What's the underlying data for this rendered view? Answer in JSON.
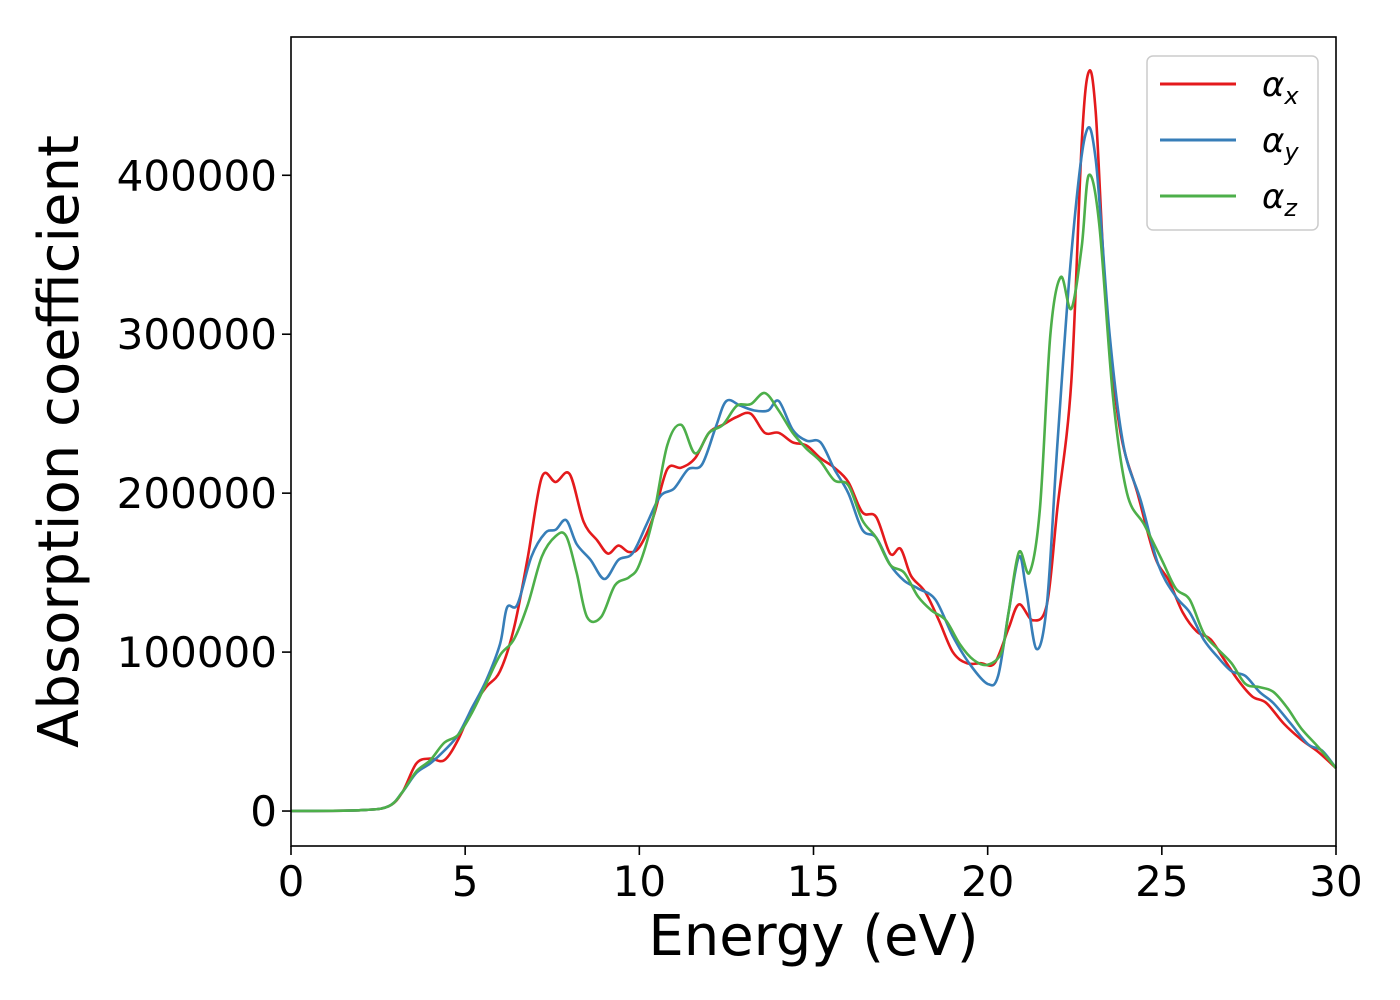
{
  "chart_data": {
    "type": "line",
    "title": "",
    "xlabel": "Energy (eV)",
    "ylabel": "Absorption coefficient",
    "xlim": [
      0,
      30
    ],
    "ylim": [
      -22000,
      487000
    ],
    "xticks": [
      0,
      5,
      10,
      15,
      20,
      25,
      30
    ],
    "xtick_labels": [
      "0",
      "5",
      "10",
      "15",
      "20",
      "25",
      "30"
    ],
    "yticks": [
      0,
      100000,
      200000,
      300000,
      400000
    ],
    "ytick_labels": [
      "0",
      "100000",
      "200000",
      "300000",
      "400000"
    ],
    "grid": false,
    "legend_position": "top-right",
    "series": [
      {
        "name": "α_x",
        "legend_base": "α",
        "legend_sub": "x",
        "color": "#e41a1c",
        "points": [
          [
            0,
            0
          ],
          [
            2,
            500
          ],
          [
            2.8,
            3000
          ],
          [
            3.2,
            12000
          ],
          [
            3.6,
            30000
          ],
          [
            4.0,
            33000
          ],
          [
            4.4,
            32000
          ],
          [
            4.8,
            45000
          ],
          [
            5.2,
            65000
          ],
          [
            5.6,
            78000
          ],
          [
            6.0,
            88000
          ],
          [
            6.4,
            115000
          ],
          [
            6.8,
            160000
          ],
          [
            7.2,
            210000
          ],
          [
            7.6,
            207000
          ],
          [
            8.0,
            212000
          ],
          [
            8.4,
            182000
          ],
          [
            8.8,
            170000
          ],
          [
            9.1,
            162000
          ],
          [
            9.4,
            167000
          ],
          [
            9.7,
            163000
          ],
          [
            10.0,
            166000
          ],
          [
            10.4,
            185000
          ],
          [
            10.8,
            215000
          ],
          [
            11.2,
            216000
          ],
          [
            11.6,
            222000
          ],
          [
            12.0,
            238000
          ],
          [
            12.4,
            243000
          ],
          [
            12.8,
            248000
          ],
          [
            13.2,
            250000
          ],
          [
            13.6,
            238000
          ],
          [
            14.0,
            238000
          ],
          [
            14.4,
            232000
          ],
          [
            14.8,
            230000
          ],
          [
            15.2,
            222000
          ],
          [
            15.6,
            216000
          ],
          [
            16.0,
            207000
          ],
          [
            16.4,
            188000
          ],
          [
            16.8,
            185000
          ],
          [
            17.2,
            162000
          ],
          [
            17.5,
            165000
          ],
          [
            17.8,
            148000
          ],
          [
            18.2,
            138000
          ],
          [
            18.6,
            120000
          ],
          [
            19.0,
            100000
          ],
          [
            19.4,
            93000
          ],
          [
            19.8,
            93000
          ],
          [
            20.2,
            93000
          ],
          [
            20.6,
            115000
          ],
          [
            20.9,
            130000
          ],
          [
            21.3,
            120000
          ],
          [
            21.7,
            130000
          ],
          [
            22.0,
            190000
          ],
          [
            22.4,
            270000
          ],
          [
            22.7,
            420000
          ],
          [
            22.9,
            465000
          ],
          [
            23.1,
            440000
          ],
          [
            23.4,
            320000
          ],
          [
            23.8,
            240000
          ],
          [
            24.3,
            200000
          ],
          [
            24.8,
            160000
          ],
          [
            25.2,
            145000
          ],
          [
            25.6,
            125000
          ],
          [
            26.0,
            113000
          ],
          [
            26.4,
            108000
          ],
          [
            26.8,
            95000
          ],
          [
            27.2,
            82000
          ],
          [
            27.6,
            72000
          ],
          [
            28.0,
            68000
          ],
          [
            28.5,
            55000
          ],
          [
            29.0,
            45000
          ],
          [
            29.5,
            37000
          ],
          [
            30.0,
            27000
          ]
        ]
      },
      {
        "name": "α_y",
        "legend_base": "α",
        "legend_sub": "y",
        "color": "#377eb8",
        "points": [
          [
            0,
            0
          ],
          [
            2,
            500
          ],
          [
            2.8,
            3000
          ],
          [
            3.2,
            12000
          ],
          [
            3.6,
            24000
          ],
          [
            4.0,
            30000
          ],
          [
            4.4,
            38000
          ],
          [
            4.8,
            48000
          ],
          [
            5.2,
            65000
          ],
          [
            5.6,
            82000
          ],
          [
            6.0,
            105000
          ],
          [
            6.2,
            128000
          ],
          [
            6.5,
            130000
          ],
          [
            6.9,
            160000
          ],
          [
            7.3,
            175000
          ],
          [
            7.6,
            177000
          ],
          [
            7.9,
            183000
          ],
          [
            8.2,
            168000
          ],
          [
            8.6,
            158000
          ],
          [
            9.0,
            146000
          ],
          [
            9.4,
            158000
          ],
          [
            9.8,
            162000
          ],
          [
            10.2,
            180000
          ],
          [
            10.6,
            198000
          ],
          [
            11.0,
            203000
          ],
          [
            11.4,
            215000
          ],
          [
            11.8,
            218000
          ],
          [
            12.2,
            242000
          ],
          [
            12.5,
            258000
          ],
          [
            12.9,
            255000
          ],
          [
            13.3,
            252000
          ],
          [
            13.7,
            252000
          ],
          [
            14.0,
            258000
          ],
          [
            14.4,
            240000
          ],
          [
            14.8,
            233000
          ],
          [
            15.2,
            232000
          ],
          [
            15.6,
            215000
          ],
          [
            16.0,
            200000
          ],
          [
            16.4,
            177000
          ],
          [
            16.8,
            172000
          ],
          [
            17.2,
            155000
          ],
          [
            17.6,
            145000
          ],
          [
            18.0,
            140000
          ],
          [
            18.5,
            133000
          ],
          [
            19.0,
            110000
          ],
          [
            19.5,
            92000
          ],
          [
            20.0,
            80000
          ],
          [
            20.3,
            85000
          ],
          [
            20.6,
            125000
          ],
          [
            20.9,
            160000
          ],
          [
            21.1,
            140000
          ],
          [
            21.4,
            102000
          ],
          [
            21.7,
            130000
          ],
          [
            22.0,
            230000
          ],
          [
            22.4,
            350000
          ],
          [
            22.8,
            425000
          ],
          [
            23.1,
            410000
          ],
          [
            23.5,
            300000
          ],
          [
            23.9,
            230000
          ],
          [
            24.4,
            195000
          ],
          [
            24.9,
            155000
          ],
          [
            25.4,
            135000
          ],
          [
            25.8,
            125000
          ],
          [
            26.2,
            108000
          ],
          [
            26.6,
            97000
          ],
          [
            27.0,
            88000
          ],
          [
            27.4,
            85000
          ],
          [
            27.8,
            75000
          ],
          [
            28.2,
            68000
          ],
          [
            28.7,
            55000
          ],
          [
            29.2,
            42000
          ],
          [
            29.6,
            38000
          ],
          [
            30.0,
            27000
          ]
        ]
      },
      {
        "name": "α_z",
        "legend_base": "α",
        "legend_sub": "z",
        "color": "#4daf4a",
        "points": [
          [
            0,
            0
          ],
          [
            2,
            500
          ],
          [
            2.8,
            3000
          ],
          [
            3.2,
            12000
          ],
          [
            3.6,
            25000
          ],
          [
            4.0,
            32000
          ],
          [
            4.4,
            43000
          ],
          [
            4.8,
            48000
          ],
          [
            5.2,
            62000
          ],
          [
            5.6,
            80000
          ],
          [
            6.0,
            98000
          ],
          [
            6.4,
            108000
          ],
          [
            6.8,
            130000
          ],
          [
            7.2,
            160000
          ],
          [
            7.6,
            173000
          ],
          [
            7.9,
            173000
          ],
          [
            8.2,
            150000
          ],
          [
            8.5,
            122000
          ],
          [
            8.9,
            122000
          ],
          [
            9.3,
            142000
          ],
          [
            9.7,
            147000
          ],
          [
            10.0,
            155000
          ],
          [
            10.4,
            185000
          ],
          [
            10.8,
            230000
          ],
          [
            11.2,
            243000
          ],
          [
            11.6,
            225000
          ],
          [
            12.0,
            238000
          ],
          [
            12.4,
            243000
          ],
          [
            12.8,
            255000
          ],
          [
            13.2,
            256000
          ],
          [
            13.6,
            263000
          ],
          [
            14.0,
            252000
          ],
          [
            14.4,
            238000
          ],
          [
            14.8,
            228000
          ],
          [
            15.2,
            220000
          ],
          [
            15.6,
            208000
          ],
          [
            16.0,
            205000
          ],
          [
            16.4,
            183000
          ],
          [
            16.8,
            172000
          ],
          [
            17.2,
            155000
          ],
          [
            17.6,
            150000
          ],
          [
            18.0,
            135000
          ],
          [
            18.4,
            126000
          ],
          [
            18.8,
            120000
          ],
          [
            19.2,
            105000
          ],
          [
            19.6,
            95000
          ],
          [
            20.0,
            92000
          ],
          [
            20.4,
            100000
          ],
          [
            20.6,
            125000
          ],
          [
            20.9,
            163000
          ],
          [
            21.2,
            150000
          ],
          [
            21.5,
            190000
          ],
          [
            21.8,
            300000
          ],
          [
            22.1,
            336000
          ],
          [
            22.4,
            316000
          ],
          [
            22.7,
            355000
          ],
          [
            22.9,
            400000
          ],
          [
            23.2,
            370000
          ],
          [
            23.6,
            260000
          ],
          [
            24.0,
            200000
          ],
          [
            24.5,
            180000
          ],
          [
            25.0,
            158000
          ],
          [
            25.4,
            140000
          ],
          [
            25.8,
            133000
          ],
          [
            26.2,
            112000
          ],
          [
            26.6,
            102000
          ],
          [
            27.0,
            93000
          ],
          [
            27.4,
            80000
          ],
          [
            27.8,
            78000
          ],
          [
            28.2,
            75000
          ],
          [
            28.6,
            65000
          ],
          [
            29.0,
            52000
          ],
          [
            29.5,
            40000
          ],
          [
            30.0,
            27000
          ]
        ]
      }
    ]
  }
}
